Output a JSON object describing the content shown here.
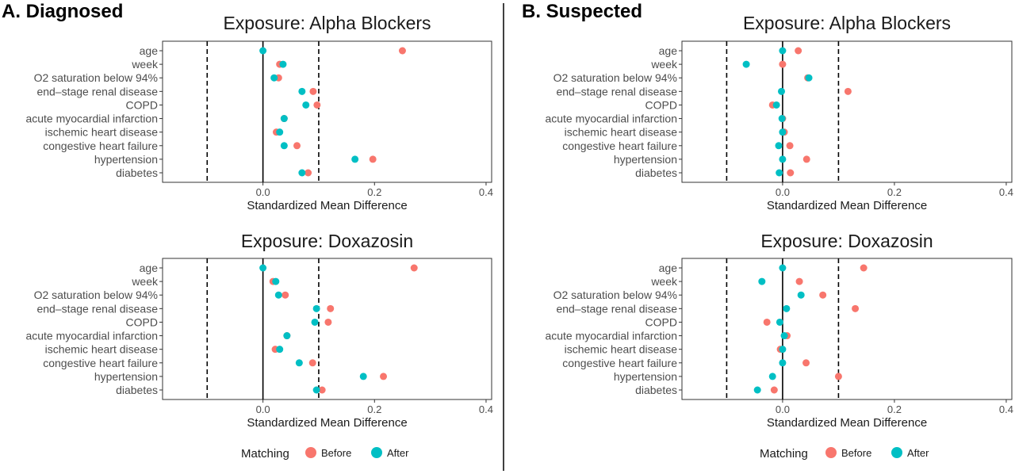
{
  "legend": {
    "title": "Matching",
    "items": [
      {
        "label": "Before",
        "color": "#F8766D"
      },
      {
        "label": "After",
        "color": "#00BFC4"
      }
    ]
  },
  "panels": [
    {
      "letter": "A. Diagnosed"
    },
    {
      "letter": "B. Suspected"
    }
  ],
  "chart_data": [
    {
      "type": "scatter",
      "title": "Exposure: Alpha Blockers",
      "panel": "A. Diagnosed",
      "xlabel": "Standardized Mean Difference",
      "xlim": [
        -0.18,
        0.41
      ],
      "xticks": [
        "0.0",
        "0.2",
        "0.4"
      ],
      "xtick_values": [
        0.0,
        0.2,
        0.4
      ],
      "reference_lines": {
        "solid": 0.0,
        "dashed": [
          -0.1,
          0.1
        ]
      },
      "categories": [
        "age",
        "week",
        "O2 saturation below 94%",
        "end–stage renal disease",
        "COPD",
        "acute myocardial infarction",
        "ischemic heart disease",
        "congestive heart failure",
        "hypertension",
        "diabetes"
      ],
      "series": [
        {
          "name": "Before",
          "color": "#F8766D",
          "values": [
            0.25,
            0.03,
            0.028,
            0.09,
            0.097,
            0.038,
            0.024,
            0.061,
            0.197,
            0.081
          ]
        },
        {
          "name": "After",
          "color": "#00BFC4",
          "values": [
            0.0,
            0.036,
            0.02,
            0.07,
            0.077,
            0.038,
            0.03,
            0.038,
            0.165,
            0.07
          ]
        }
      ]
    },
    {
      "type": "scatter",
      "title": "Exposure: Doxazosin",
      "panel": "A. Diagnosed",
      "xlabel": "Standardized Mean Difference",
      "xlim": [
        -0.18,
        0.41
      ],
      "xticks": [
        "0.0",
        "0.2",
        "0.4"
      ],
      "xtick_values": [
        0.0,
        0.2,
        0.4
      ],
      "reference_lines": {
        "solid": 0.0,
        "dashed": [
          -0.1,
          0.1
        ]
      },
      "categories": [
        "age",
        "week",
        "O2 saturation below 94%",
        "end–stage renal disease",
        "COPD",
        "acute myocardial infarction",
        "ischemic heart disease",
        "congestive heart failure",
        "hypertension",
        "diabetes"
      ],
      "series": [
        {
          "name": "Before",
          "color": "#F8766D",
          "values": [
            0.271,
            0.018,
            0.04,
            0.121,
            0.117,
            0.043,
            0.022,
            0.089,
            0.216,
            0.106
          ]
        },
        {
          "name": "After",
          "color": "#00BFC4",
          "values": [
            0.0,
            0.023,
            0.028,
            0.096,
            0.093,
            0.043,
            0.03,
            0.065,
            0.18,
            0.096
          ]
        }
      ]
    },
    {
      "type": "scatter",
      "title": "Exposure: Alpha Blockers",
      "panel": "B. Suspected",
      "xlabel": "Standardized Mean Difference",
      "xlim": [
        -0.18,
        0.41
      ],
      "xticks": [
        "0.0",
        "0.2",
        "0.4"
      ],
      "xtick_values": [
        0.0,
        0.2,
        0.4
      ],
      "reference_lines": {
        "solid": 0.0,
        "dashed": [
          -0.1,
          0.1
        ]
      },
      "categories": [
        "age",
        "week",
        "O2 saturation below 94%",
        "end–stage renal disease",
        "COPD",
        "acute myocardial infarction",
        "ischemic heart disease",
        "congestive heart failure",
        "hypertension",
        "diabetes"
      ],
      "series": [
        {
          "name": "Before",
          "color": "#F8766D",
          "values": [
            0.028,
            0.0,
            0.045,
            0.117,
            -0.018,
            0.0,
            0.003,
            0.013,
            0.043,
            0.014
          ]
        },
        {
          "name": "After",
          "color": "#00BFC4",
          "values": [
            0.0,
            -0.065,
            0.047,
            -0.002,
            -0.011,
            -0.001,
            0.0,
            -0.007,
            0.0,
            -0.006
          ]
        }
      ]
    },
    {
      "type": "scatter",
      "title": "Exposure: Doxazosin",
      "panel": "B. Suspected",
      "xlabel": "Standardized Mean Difference",
      "xlim": [
        -0.18,
        0.41
      ],
      "xticks": [
        "0.0",
        "0.2",
        "0.4"
      ],
      "xtick_values": [
        0.0,
        0.2,
        0.4
      ],
      "reference_lines": {
        "solid": 0.0,
        "dashed": [
          -0.1,
          0.1
        ]
      },
      "categories": [
        "age",
        "week",
        "O2 saturation below 94%",
        "end–stage renal disease",
        "COPD",
        "acute myocardial infarction",
        "ischemic heart disease",
        "congestive heart failure",
        "hypertension",
        "diabetes"
      ],
      "series": [
        {
          "name": "Before",
          "color": "#F8766D",
          "values": [
            0.145,
            0.03,
            0.072,
            0.13,
            -0.028,
            0.008,
            -0.004,
            0.042,
            0.1,
            -0.015
          ]
        },
        {
          "name": "After",
          "color": "#00BFC4",
          "values": [
            0.0,
            -0.037,
            0.033,
            0.007,
            -0.005,
            0.003,
            0.0,
            0.0,
            -0.018,
            -0.045
          ]
        }
      ]
    }
  ]
}
